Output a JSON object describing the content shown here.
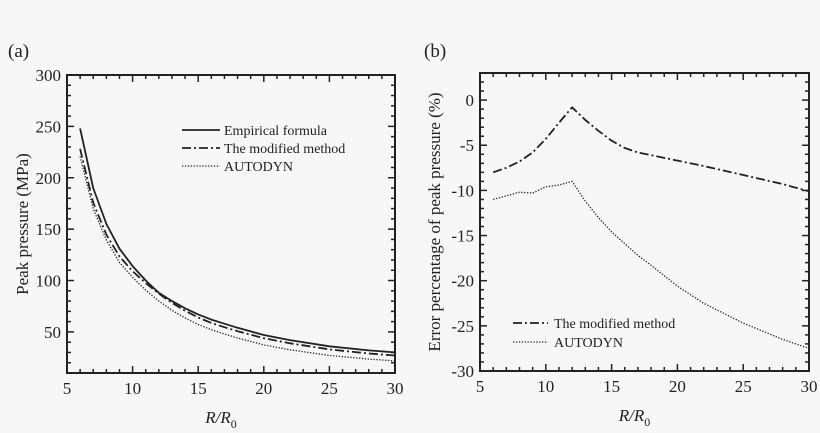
{
  "chart_data": [
    {
      "type": "line",
      "panel_label": "(a)",
      "xlabel": "R/R",
      "xlabel_sub": "0",
      "ylabel": "Peak pressure (MPa)",
      "xlim": [
        5,
        30
      ],
      "ylim": [
        10,
        300
      ],
      "xticks": [
        5,
        10,
        15,
        20,
        25,
        30
      ],
      "yticks": [
        50,
        100,
        150,
        200,
        250,
        300
      ],
      "grid": false,
      "legend_position": "top-right",
      "x": [
        6,
        7,
        8,
        9,
        10,
        11,
        12,
        13,
        14,
        15,
        16,
        17,
        18,
        20,
        22,
        25,
        28,
        30
      ],
      "series": [
        {
          "name": "Empirical formula",
          "style": "solid",
          "values": [
            248,
            190,
            155,
            131,
            114,
            100,
            88,
            80,
            73,
            67,
            62,
            58,
            54,
            47,
            42,
            36,
            32,
            30
          ]
        },
        {
          "name": "The modified method",
          "style": "dashdot",
          "values": [
            228.2,
            175.8,
            144.5,
            123.4,
            109.1,
            97.5,
            87.3,
            78.2,
            70.5,
            64.0,
            58.7,
            54.6,
            50.7,
            43.9,
            38.9,
            33.0,
            29.0,
            27.0
          ]
        },
        {
          "name": "AUTODYN",
          "style": "dotted",
          "values": [
            220.7,
            169.9,
            139.2,
            117.5,
            103.1,
            90.6,
            80.1,
            71.0,
            63.5,
            57.2,
            52.1,
            48.0,
            44.1,
            37.3,
            32.6,
            27.1,
            23.5,
            21.8
          ]
        }
      ]
    },
    {
      "type": "line",
      "panel_label": "(b)",
      "xlabel": "R/R",
      "xlabel_sub": "0",
      "ylabel": "Error percentage of peak pressure (%)",
      "xlim": [
        5,
        30
      ],
      "ylim": [
        -30,
        3
      ],
      "xticks": [
        5,
        10,
        15,
        20,
        25,
        30
      ],
      "yticks": [
        -30,
        -25,
        -20,
        -15,
        -10,
        -5,
        0
      ],
      "grid": false,
      "legend_position": "bottom-left",
      "x": [
        6,
        7,
        8,
        9,
        10,
        11,
        12,
        13,
        14,
        15,
        16,
        17,
        18,
        20,
        22,
        25,
        28,
        30
      ],
      "series": [
        {
          "name": "The modified method",
          "style": "dashdot",
          "values": [
            -8,
            -7.5,
            -6.8,
            -5.8,
            -4.3,
            -2.5,
            -0.8,
            -2.2,
            -3.4,
            -4.5,
            -5.3,
            -5.8,
            -6.1,
            -6.7,
            -7.3,
            -8.3,
            -9.3,
            -10.1
          ]
        },
        {
          "name": "AUTODYN",
          "style": "dotted",
          "values": [
            -11,
            -10.6,
            -10.2,
            -10.3,
            -9.6,
            -9.4,
            -9.0,
            -11.2,
            -13.0,
            -14.6,
            -15.9,
            -17.2,
            -18.3,
            -20.6,
            -22.5,
            -24.7,
            -26.5,
            -27.5
          ]
        }
      ]
    }
  ]
}
